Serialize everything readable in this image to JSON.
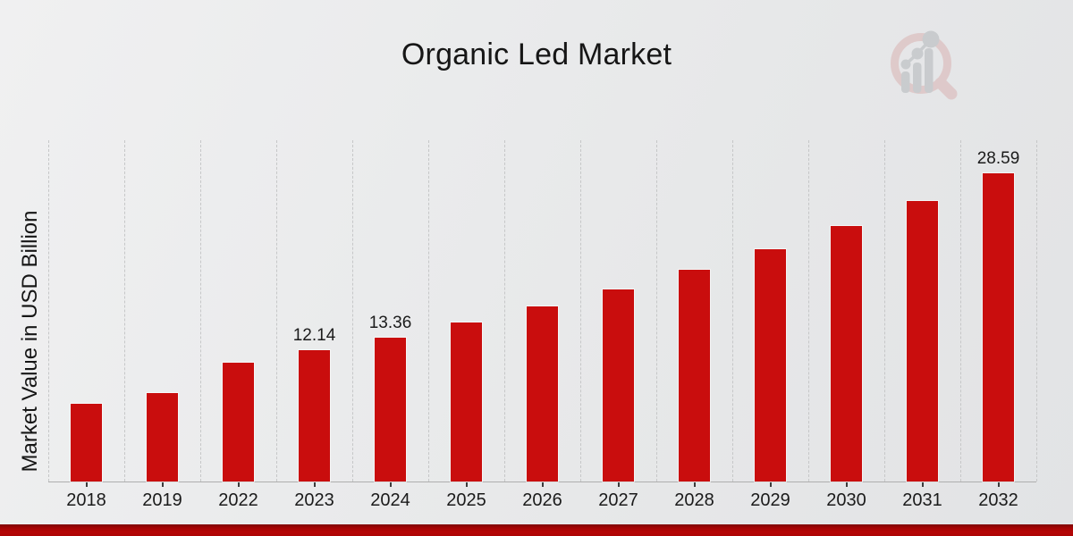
{
  "title": "Organic Led Market",
  "ylabel": "Market Value in USD Billion",
  "watermark_icon": "magnifier-bar-chart-logo",
  "colors": {
    "bar": "#c90d0d",
    "banner": "#b50606",
    "text": "#1b1b1b",
    "gridline": "#c6c7c8",
    "axis_line": "#aeaeae",
    "watermark_pink": "#d9aeae",
    "watermark_gray": "#aeb2b6"
  },
  "chart_data": {
    "type": "bar",
    "title": "Organic Led Market",
    "xlabel": "",
    "ylabel": "Market Value in USD Billion",
    "categories": [
      "2018",
      "2019",
      "2022",
      "2023",
      "2024",
      "2025",
      "2026",
      "2027",
      "2028",
      "2029",
      "2030",
      "2031",
      "2032"
    ],
    "values": [
      7.2,
      8.2,
      11.0,
      12.14,
      13.36,
      14.7,
      16.2,
      17.8,
      19.6,
      21.5,
      23.7,
      26.0,
      28.59
    ],
    "annotations": {
      "2023": "12.14",
      "2024": "13.36",
      "2032": "28.59"
    },
    "ylim": [
      0,
      31.7
    ],
    "grid": "vertical-dashed",
    "legend": "none",
    "bar_color": "#c90d0d"
  }
}
